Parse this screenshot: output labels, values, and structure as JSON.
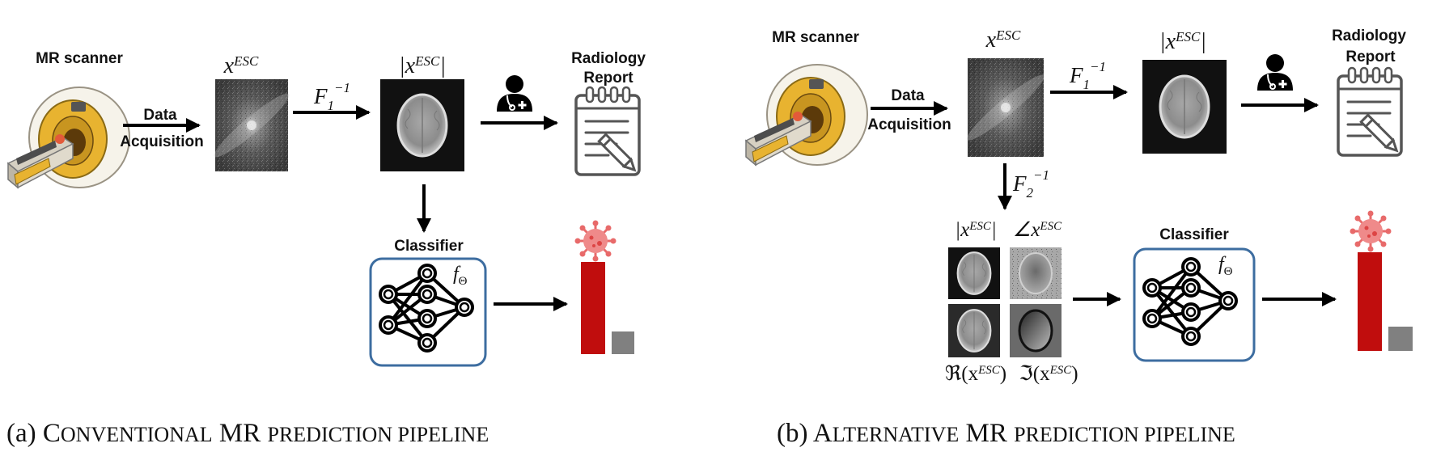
{
  "panel_a": {
    "scanner_label": "MR scanner",
    "acquisition_label_1": "Data",
    "acquisition_label_2": "Acquisition",
    "kspace_label": "x",
    "kspace_sup": "ESC",
    "transform_label": "F",
    "transform_sub": "1",
    "transform_sup": "−1",
    "magnitude_label": "|x",
    "magnitude_sup": "ESC",
    "magnitude_close": "|",
    "report_label_1": "Radiology",
    "report_label_2": "Report",
    "classifier_label": "Classifier",
    "classifier_func": "f",
    "classifier_func_sub": "Θ",
    "caption_prefix": "(a) C",
    "caption_sc1": "ONVENTIONAL",
    "caption_mid": " MR ",
    "caption_sc2": "PREDICTION PIPELINE"
  },
  "panel_b": {
    "scanner_label": "MR scanner",
    "acquisition_label_1": "Data",
    "acquisition_label_2": "Acquisition",
    "kspace_label": "x",
    "kspace_sup": "ESC",
    "transform1_label": "F",
    "transform1_sub": "1",
    "transform1_sup": "−1",
    "magnitude_label": "|x",
    "magnitude_sup": "ESC",
    "magnitude_close": "|",
    "report_label_1": "Radiology",
    "report_label_2": "Report",
    "transform2_label": "F",
    "transform2_sub": "2",
    "transform2_sup": "−1",
    "grid_mag_label": "|x",
    "grid_mag_sup": "ESC",
    "grid_mag_close": "|",
    "grid_phase_label": "∠x",
    "grid_phase_sup": "ESC",
    "grid_real_label": "ℜ(x",
    "grid_real_sup": "ESC",
    "grid_real_close": ")",
    "grid_imag_label": "ℑ(x",
    "grid_imag_sup": "ESC",
    "grid_imag_close": ")",
    "classifier_label": "Classifier",
    "classifier_func": "f",
    "classifier_func_sub": "Θ",
    "caption_prefix": "(b) A",
    "caption_sc1": "LTERNATIVE",
    "caption_mid": " MR ",
    "caption_sc2": "PREDICTION PIPELINE"
  },
  "colors": {
    "bar_positive": "#c00d0d",
    "bar_negative": "#808080",
    "classifier_border": "#3d6da0",
    "virus": "#e86a6a",
    "scanner_yellow": "#e8b330",
    "scanner_body": "#f1ede2"
  },
  "icons": [
    "mr-scanner-icon",
    "doctor-icon",
    "clipboard-report-icon",
    "neural-network-icon",
    "virus-icon"
  ]
}
